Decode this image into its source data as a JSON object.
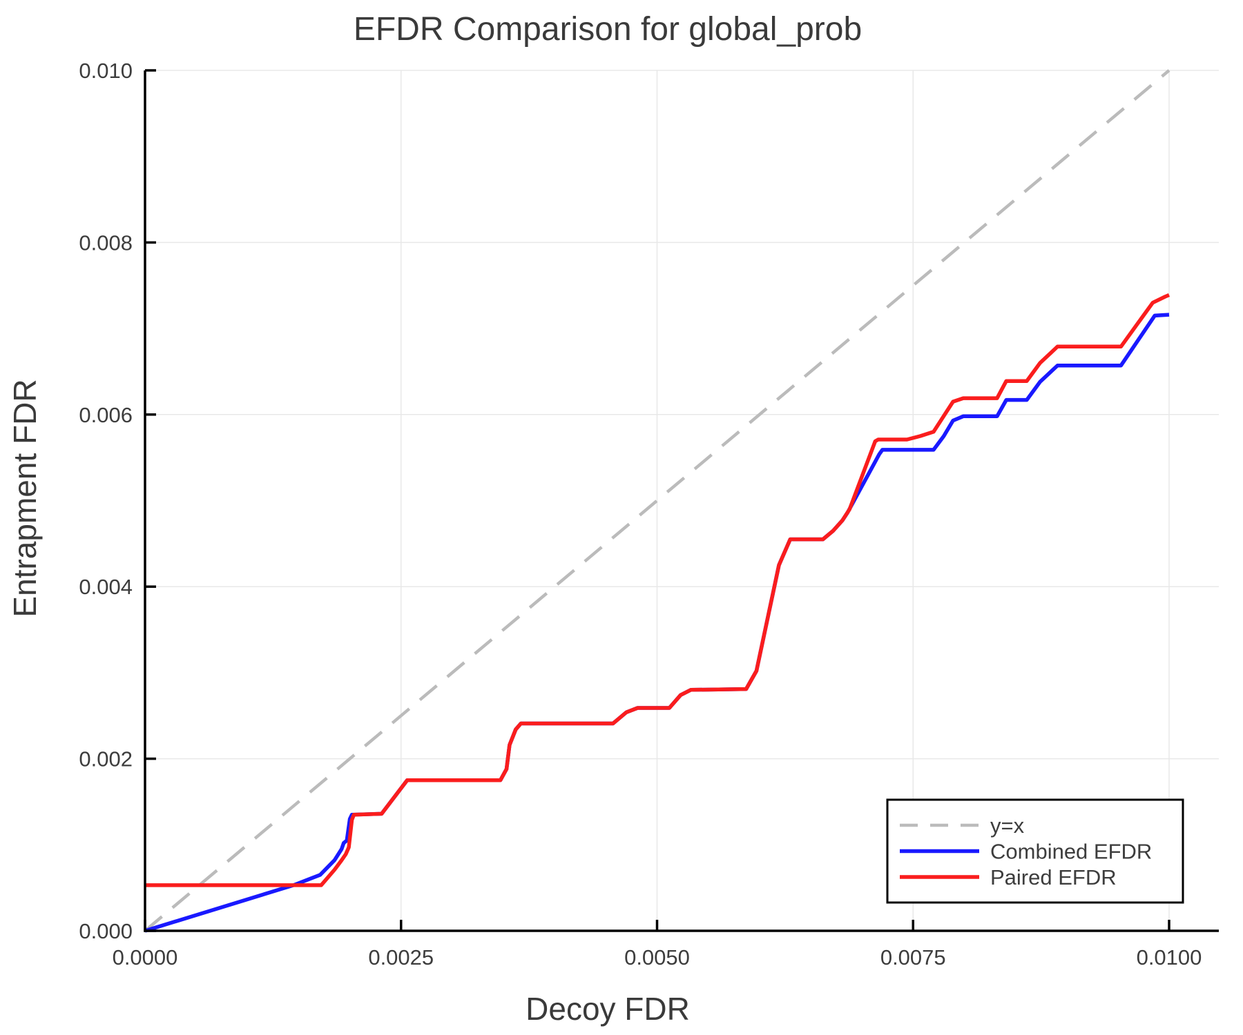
{
  "chart": {
    "title": "EFDR Comparison for global_prob",
    "xlabel": "Decoy FDR",
    "ylabel": "Entrapment FDR"
  },
  "legend": {
    "items": [
      {
        "label": "y=x"
      },
      {
        "label": "Combined EFDR"
      },
      {
        "label": "Paired EFDR"
      }
    ]
  },
  "colors": {
    "identity_line": "#bbbbbb",
    "combined": "#1919ff",
    "paired": "#fa1d1d",
    "grid": "#e8e8e8",
    "spine": "#000000",
    "text": "#3d3d3d",
    "legend_border": "#000000",
    "background": "#ffffff"
  },
  "chart_data": {
    "type": "line",
    "title": "EFDR Comparison for global_prob",
    "xlabel": "Decoy FDR",
    "ylabel": "Entrapment FDR",
    "xlim": [
      0,
      0.010486
    ],
    "ylim": [
      0,
      0.01
    ],
    "grid": true,
    "legend_position": "lower right",
    "x_ticks": {
      "values": [
        0.0,
        0.0025,
        0.005,
        0.0075,
        0.01
      ],
      "labels": [
        "0.0000",
        "0.0025",
        "0.0050",
        "0.0075",
        "0.0100"
      ]
    },
    "y_ticks": {
      "values": [
        0.0,
        0.002,
        0.004,
        0.006,
        0.008,
        0.01
      ],
      "labels": [
        "0.000",
        "0.002",
        "0.004",
        "0.006",
        "0.008",
        "0.010"
      ]
    },
    "series": [
      {
        "name": "y=x",
        "style": "dashed",
        "color": "#bbbbbb",
        "width": 4.5,
        "points": [
          [
            0.0,
            0.0
          ],
          [
            0.01,
            0.01
          ]
        ]
      },
      {
        "name": "Combined EFDR",
        "style": "solid",
        "color": "#1919ff",
        "width": 5.5,
        "points": [
          [
            0.0,
            0.0
          ],
          [
            0.00145,
            0.00053
          ],
          [
            0.00171,
            0.00065
          ],
          [
            0.00185,
            0.00082
          ],
          [
            0.00192,
            0.00095
          ],
          [
            0.00194,
            0.00102
          ],
          [
            0.00197,
            0.00105
          ],
          [
            0.002,
            0.0013
          ],
          [
            0.00202,
            0.00135
          ],
          [
            0.00231,
            0.00136
          ],
          [
            0.00256,
            0.00175
          ],
          [
            0.00347,
            0.00175
          ],
          [
            0.00353,
            0.00188
          ],
          [
            0.00356,
            0.00216
          ],
          [
            0.00362,
            0.00234
          ],
          [
            0.00367,
            0.00241
          ],
          [
            0.00457,
            0.00241
          ],
          [
            0.0047,
            0.00254
          ],
          [
            0.00481,
            0.00259
          ],
          [
            0.00512,
            0.00259
          ],
          [
            0.00523,
            0.00274
          ],
          [
            0.00533,
            0.0028
          ],
          [
            0.00587,
            0.00281
          ],
          [
            0.00597,
            0.00302
          ],
          [
            0.00619,
            0.00425
          ],
          [
            0.0063,
            0.00455
          ],
          [
            0.00662,
            0.00455
          ],
          [
            0.00672,
            0.00465
          ],
          [
            0.00681,
            0.00477
          ],
          [
            0.00686,
            0.00486
          ],
          [
            0.00717,
            0.00554
          ],
          [
            0.0072,
            0.00559
          ],
          [
            0.0077,
            0.00559
          ],
          [
            0.0078,
            0.00575
          ],
          [
            0.00789,
            0.00593
          ],
          [
            0.00799,
            0.00598
          ],
          [
            0.00832,
            0.00598
          ],
          [
            0.00841,
            0.00617
          ],
          [
            0.00861,
            0.00617
          ],
          [
            0.00874,
            0.00638
          ],
          [
            0.00891,
            0.00657
          ],
          [
            0.00953,
            0.00657
          ],
          [
            0.00986,
            0.00715
          ],
          [
            0.01,
            0.00716
          ]
        ]
      },
      {
        "name": "Paired EFDR",
        "style": "solid",
        "color": "#fa1d1d",
        "width": 5.5,
        "points": [
          [
            0.0,
            0.00053
          ],
          [
            0.00172,
            0.00053
          ],
          [
            0.00185,
            0.00071
          ],
          [
            0.00192,
            0.00082
          ],
          [
            0.00196,
            0.00089
          ],
          [
            0.00199,
            0.00097
          ],
          [
            0.00202,
            0.00129
          ],
          [
            0.00204,
            0.00135
          ],
          [
            0.00231,
            0.00136
          ],
          [
            0.00256,
            0.00175
          ],
          [
            0.00347,
            0.00175
          ],
          [
            0.00353,
            0.00188
          ],
          [
            0.00356,
            0.00216
          ],
          [
            0.00362,
            0.00234
          ],
          [
            0.00367,
            0.00241
          ],
          [
            0.00457,
            0.00241
          ],
          [
            0.0047,
            0.00254
          ],
          [
            0.00481,
            0.00259
          ],
          [
            0.00512,
            0.00259
          ],
          [
            0.00523,
            0.00274
          ],
          [
            0.00533,
            0.0028
          ],
          [
            0.00587,
            0.00281
          ],
          [
            0.00597,
            0.00302
          ],
          [
            0.00619,
            0.00425
          ],
          [
            0.0063,
            0.00455
          ],
          [
            0.00662,
            0.00455
          ],
          [
            0.00672,
            0.00465
          ],
          [
            0.00681,
            0.00477
          ],
          [
            0.00688,
            0.0049
          ],
          [
            0.00713,
            0.00569
          ],
          [
            0.00716,
            0.00571
          ],
          [
            0.00744,
            0.00571
          ],
          [
            0.00757,
            0.00575
          ],
          [
            0.0077,
            0.0058
          ],
          [
            0.00789,
            0.00615
          ],
          [
            0.00799,
            0.00619
          ],
          [
            0.00832,
            0.00619
          ],
          [
            0.00841,
            0.00639
          ],
          [
            0.00861,
            0.00639
          ],
          [
            0.00874,
            0.0066
          ],
          [
            0.00891,
            0.00679
          ],
          [
            0.00953,
            0.00679
          ],
          [
            0.00984,
            0.0073
          ],
          [
            0.00996,
            0.00737
          ],
          [
            0.01,
            0.00739
          ]
        ]
      }
    ]
  }
}
